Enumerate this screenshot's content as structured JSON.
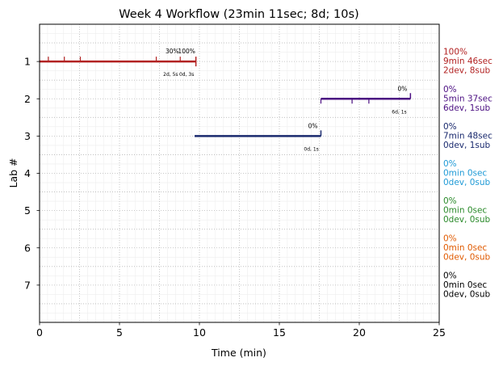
{
  "chart_data": {
    "type": "timeline",
    "title": "Week 4 Workflow (23min 11sec; 8d; 10s)",
    "xlabel": "Time (min)",
    "ylabel": "Lab #",
    "xlim": [
      0,
      25
    ],
    "ylim": [
      8,
      0
    ],
    "grid": true,
    "x_ticks": [
      0,
      5,
      10,
      15,
      20,
      25
    ],
    "y_ticks": [
      1,
      2,
      3,
      4,
      5,
      6,
      7
    ],
    "labs": [
      {
        "lab": 1,
        "color": "#b22222",
        "start": 0,
        "end": 9.78,
        "marks": [
          0.55,
          1.55,
          2.55,
          7.3,
          8.8
        ],
        "mark_dir": "up",
        "pct_labels": [
          {
            "x": 8.3,
            "text": "30%"
          },
          {
            "x": 9.2,
            "text": "100%"
          }
        ],
        "sub_labels": [
          {
            "x": 8.2,
            "text": "2d, 5s"
          },
          {
            "x": 9.2,
            "text": "0d, 3s"
          }
        ],
        "side": [
          "100%",
          "9min 46sec",
          "2dev, 8sub"
        ]
      },
      {
        "lab": 2,
        "color": "#4b0f82",
        "start": 17.6,
        "end": 23.2,
        "marks": [
          17.6,
          19.55,
          20.6
        ],
        "mark_dir": "down",
        "end_mark": "up",
        "pct_labels": [
          {
            "x": 22.7,
            "text": "0%"
          }
        ],
        "sub_labels": [
          {
            "x": 22.5,
            "text": "6d, 1s"
          }
        ],
        "side": [
          "0%",
          "5min 37sec",
          "6dev, 1sub"
        ]
      },
      {
        "lab": 3,
        "color": "#1a2a6e",
        "start": 9.7,
        "end": 17.6,
        "marks": [],
        "end_mark": "up",
        "pct_labels": [
          {
            "x": 17.1,
            "text": "0%"
          }
        ],
        "sub_labels": [
          {
            "x": 17.0,
            "text": "0d, 1s"
          }
        ],
        "side": [
          "0%",
          "7min 48sec",
          "0dev, 1sub"
        ]
      },
      {
        "lab": 4,
        "color": "#1f9ad6",
        "side": [
          "0%",
          "0min 0sec",
          "0dev, 0sub"
        ]
      },
      {
        "lab": 5,
        "color": "#2a8a2a",
        "side": [
          "0%",
          "0min 0sec",
          "0dev, 0sub"
        ]
      },
      {
        "lab": 6,
        "color": "#e05a00",
        "side": [
          "0%",
          "0min 0sec",
          "0dev, 0sub"
        ]
      },
      {
        "lab": 7,
        "color": "#000000",
        "side": [
          "0%",
          "0min 0sec",
          "0dev, 0sub"
        ]
      }
    ]
  }
}
